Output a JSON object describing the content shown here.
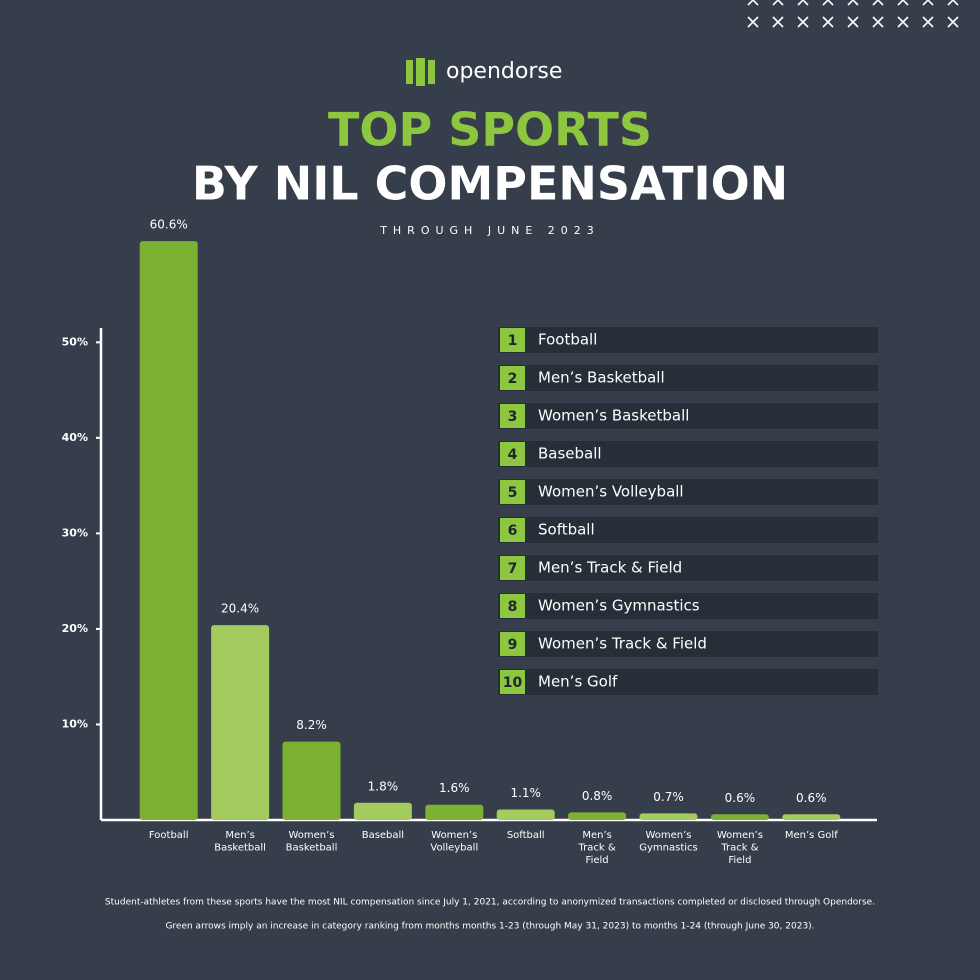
{
  "logo": "opendorse",
  "chart_data": {
    "type": "bar",
    "title": "TOP SPORTS",
    "title_line2": "BY NIL COMPENSATION",
    "subtitle": "THROUGH JUNE 2023",
    "categories": [
      "Football",
      "Men’s\nBasketball",
      "Women’s\nBasketball",
      "Baseball",
      "Women’s\nVolleyball",
      "Softball",
      "Men’s\nTrack &\nField",
      "Women’s\nGymnastics",
      "Women’s\nTrack &\nField",
      "Men’s Golf"
    ],
    "values": [
      60.6,
      20.4,
      8.2,
      1.8,
      1.6,
      1.1,
      0.8,
      0.7,
      0.6,
      0.6
    ],
    "value_labels": [
      "60.6%",
      "20.4%",
      "8.2%",
      "1.8%",
      "1.6%",
      "1.1%",
      "0.8%",
      "0.7%",
      "0.6%",
      "0.6%"
    ],
    "colors": [
      "#7cb134",
      "#a4cb5e",
      "#7cb134",
      "#a4cb5e",
      "#7cb134",
      "#a4cb5e",
      "#7cb134",
      "#a4cb5e",
      "#7cb134",
      "#a4cb5e"
    ],
    "ylim": [
      0,
      51.5
    ],
    "yticks": [
      {
        "value": 10,
        "label": "10%"
      },
      {
        "value": 20,
        "label": "20%"
      },
      {
        "value": 30,
        "label": "30%"
      },
      {
        "value": 40,
        "label": "40%"
      },
      {
        "value": 50,
        "label": "50%"
      }
    ]
  },
  "ranking": [
    {
      "rank": "1",
      "name": "Football"
    },
    {
      "rank": "2",
      "name": "Men’s Basketball"
    },
    {
      "rank": "3",
      "name": "Women’s Basketball"
    },
    {
      "rank": "4",
      "name": "Baseball"
    },
    {
      "rank": "5",
      "name": "Women’s Volleyball"
    },
    {
      "rank": "6",
      "name": "Softball"
    },
    {
      "rank": "7",
      "name": "Men’s Track & Field"
    },
    {
      "rank": "8",
      "name": "Women’s Gymnastics"
    },
    {
      "rank": "9",
      "name": "Women’s Track & Field"
    },
    {
      "rank": "10",
      "name": "Men’s Golf"
    }
  ],
  "footnotes": [
    "Student-athletes from these sports have the most NIL compensation since July 1, 2021, according to anonymized transactions completed or disclosed through Opendorse.",
    "Green arrows imply an increase in category ranking from months months 1-23 (through May 31, 2023) to months 1-24 (through June 30, 2023)."
  ]
}
